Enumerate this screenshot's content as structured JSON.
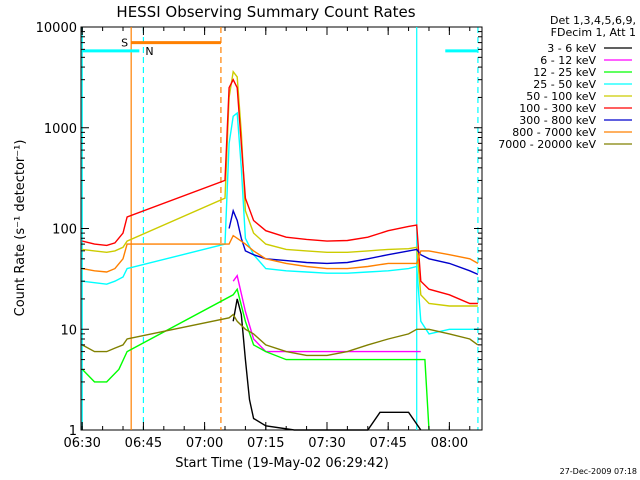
{
  "chart_data": {
    "type": "line",
    "title": "HESSI Observing Summary Count Rates",
    "xlabel": "Start Time (19-May-02 06:29:42)",
    "ylabel": "Count Rate (s⁻¹ detector⁻¹)",
    "yscale": "log",
    "ylim": [
      1,
      10000
    ],
    "xlim": [
      "06:29:42",
      "08:08:00"
    ],
    "x_ticks": [
      "06:30",
      "06:45",
      "07:00",
      "07:15",
      "07:30",
      "07:45",
      "08:00"
    ],
    "y_ticks": [
      "1",
      "10",
      "100",
      "1000",
      "10000"
    ],
    "legend_header": [
      "Det 1,3,4,5,6,9,",
      "FDecim 1, Att 1"
    ],
    "legend_position": "outside right",
    "timestamp": "27-Dec-2009 07:18",
    "flags": [
      {
        "label": "S",
        "color": "#ff8000",
        "level": 7000,
        "start": "06:42",
        "end": "07:04"
      },
      {
        "label": "N",
        "color": "#00ffff",
        "level": 5800,
        "start": "06:30",
        "end": "06:44"
      },
      {
        "label": "",
        "color": "#00ffff",
        "level": 5800,
        "start": "07:59",
        "end": "08:07"
      }
    ],
    "markers": [
      {
        "time": "06:30",
        "color": "#00ffff",
        "style": "solid"
      },
      {
        "time": "06:42",
        "color": "#ff8000",
        "style": "solid"
      },
      {
        "time": "06:45",
        "color": "#00ffff",
        "style": "dashed"
      },
      {
        "time": "07:04",
        "color": "#ff8000",
        "style": "dashed"
      },
      {
        "time": "07:52",
        "color": "#00ffff",
        "style": "solid"
      },
      {
        "time": "08:07",
        "color": "#00ffff",
        "style": "dashed"
      }
    ],
    "series": [
      {
        "name": "3 - 6 keV",
        "color": "#000000",
        "points": [
          [
            "07:07",
            12
          ],
          [
            "07:08",
            20
          ],
          [
            "07:09",
            14
          ],
          [
            "07:10",
            5
          ],
          [
            "07:11",
            2
          ],
          [
            "07:12",
            1.3
          ],
          [
            "07:15",
            1.1
          ],
          [
            "07:22",
            1
          ],
          [
            "07:40",
            1
          ],
          [
            "07:43",
            1.5
          ],
          [
            "07:46",
            1.5
          ],
          [
            "07:50",
            1.5
          ],
          [
            "07:53",
            1
          ]
        ]
      },
      {
        "name": "6 - 12 keV",
        "color": "#ff00ff",
        "points": [
          [
            "07:07",
            30
          ],
          [
            "07:08",
            34
          ],
          [
            "07:10",
            15
          ],
          [
            "07:12",
            8
          ],
          [
            "07:15",
            6
          ],
          [
            "07:20",
            6
          ],
          [
            "07:30",
            6
          ],
          [
            "07:40",
            6
          ],
          [
            "07:45",
            6
          ],
          [
            "07:50",
            6
          ],
          [
            "07:53",
            6
          ]
        ]
      },
      {
        "name": "12 - 25 keV",
        "color": "#00ff00",
        "points": [
          [
            "06:30",
            4
          ],
          [
            "06:33",
            3
          ],
          [
            "06:36",
            3
          ],
          [
            "06:39",
            4
          ],
          [
            "06:41",
            6
          ],
          [
            "07:07",
            22
          ],
          [
            "07:08",
            25
          ],
          [
            "07:10",
            12
          ],
          [
            "07:12",
            7
          ],
          [
            "07:15",
            6
          ],
          [
            "07:20",
            5
          ],
          [
            "07:30",
            5
          ],
          [
            "07:40",
            5
          ],
          [
            "07:45",
            5
          ],
          [
            "07:50",
            5
          ],
          [
            "07:54",
            5
          ],
          [
            "07:55",
            1
          ]
        ]
      },
      {
        "name": "25 - 50 keV",
        "color": "#00ffff",
        "points": [
          [
            "06:30",
            30
          ],
          [
            "06:33",
            29
          ],
          [
            "06:36",
            28
          ],
          [
            "06:38",
            30
          ],
          [
            "06:40",
            33
          ],
          [
            "06:41",
            40
          ],
          [
            "07:05",
            70
          ],
          [
            "07:06",
            700
          ],
          [
            "07:07",
            1300
          ],
          [
            "07:08",
            1400
          ],
          [
            "07:09",
            400
          ],
          [
            "07:10",
            80
          ],
          [
            "07:12",
            55
          ],
          [
            "07:15",
            40
          ],
          [
            "07:20",
            38
          ],
          [
            "07:25",
            37
          ],
          [
            "07:30",
            36
          ],
          [
            "07:35",
            36
          ],
          [
            "07:40",
            37
          ],
          [
            "07:45",
            38
          ],
          [
            "07:50",
            40
          ],
          [
            "07:52",
            42
          ],
          [
            "07:53",
            12
          ],
          [
            "07:55",
            9
          ],
          [
            "08:00",
            10
          ],
          [
            "08:05",
            10
          ],
          [
            "08:07",
            10
          ]
        ]
      },
      {
        "name": "50 - 100 keV",
        "color": "#cccc00",
        "points": [
          [
            "06:30",
            62
          ],
          [
            "06:33",
            60
          ],
          [
            "06:36",
            58
          ],
          [
            "06:38",
            60
          ],
          [
            "06:40",
            65
          ],
          [
            "06:41",
            75
          ],
          [
            "07:05",
            200
          ],
          [
            "07:06",
            2000
          ],
          [
            "07:07",
            3600
          ],
          [
            "07:08",
            3200
          ],
          [
            "07:09",
            900
          ],
          [
            "07:10",
            150
          ],
          [
            "07:12",
            90
          ],
          [
            "07:15",
            70
          ],
          [
            "07:20",
            62
          ],
          [
            "07:25",
            60
          ],
          [
            "07:30",
            58
          ],
          [
            "07:35",
            58
          ],
          [
            "07:40",
            60
          ],
          [
            "07:45",
            62
          ],
          [
            "07:50",
            63
          ],
          [
            "07:52",
            65
          ],
          [
            "07:53",
            22
          ],
          [
            "07:55",
            18
          ],
          [
            "08:00",
            17
          ],
          [
            "08:05",
            17
          ],
          [
            "08:07",
            17
          ]
        ]
      },
      {
        "name": "100 - 300 keV",
        "color": "#ff0000",
        "points": [
          [
            "06:30",
            75
          ],
          [
            "06:33",
            70
          ],
          [
            "06:36",
            68
          ],
          [
            "06:38",
            72
          ],
          [
            "06:40",
            90
          ],
          [
            "06:41",
            130
          ],
          [
            "07:05",
            300
          ],
          [
            "07:06",
            2500
          ],
          [
            "07:07",
            3000
          ],
          [
            "07:08",
            2500
          ],
          [
            "07:09",
            700
          ],
          [
            "07:10",
            200
          ],
          [
            "07:12",
            120
          ],
          [
            "07:15",
            95
          ],
          [
            "07:20",
            82
          ],
          [
            "07:25",
            78
          ],
          [
            "07:30",
            75
          ],
          [
            "07:35",
            76
          ],
          [
            "07:40",
            82
          ],
          [
            "07:45",
            95
          ],
          [
            "07:50",
            105
          ],
          [
            "07:52",
            108
          ],
          [
            "07:53",
            30
          ],
          [
            "07:55",
            25
          ],
          [
            "08:00",
            22
          ],
          [
            "08:05",
            18
          ],
          [
            "08:07",
            18
          ]
        ]
      },
      {
        "name": "300 - 800 keV",
        "color": "#0000cc",
        "points": [
          [
            "07:06",
            100
          ],
          [
            "07:07",
            150
          ],
          [
            "07:08",
            120
          ],
          [
            "07:09",
            80
          ],
          [
            "07:10",
            60
          ],
          [
            "07:12",
            55
          ],
          [
            "07:15",
            50
          ],
          [
            "07:20",
            48
          ],
          [
            "07:25",
            46
          ],
          [
            "07:30",
            45
          ],
          [
            "07:35",
            46
          ],
          [
            "07:40",
            50
          ],
          [
            "07:45",
            55
          ],
          [
            "07:50",
            60
          ],
          [
            "07:52",
            62
          ],
          [
            "07:53",
            55
          ],
          [
            "07:55",
            50
          ],
          [
            "08:00",
            45
          ],
          [
            "08:05",
            38
          ],
          [
            "08:07",
            35
          ]
        ]
      },
      {
        "name": "800 - 7000 keV",
        "color": "#ff8000",
        "points": [
          [
            "06:30",
            40
          ],
          [
            "06:33",
            38
          ],
          [
            "06:36",
            37
          ],
          [
            "06:38",
            40
          ],
          [
            "06:40",
            50
          ],
          [
            "06:41",
            70
          ],
          [
            "07:06",
            70
          ],
          [
            "07:07",
            85
          ],
          [
            "07:08",
            80
          ],
          [
            "07:10",
            70
          ],
          [
            "07:12",
            60
          ],
          [
            "07:15",
            50
          ],
          [
            "07:20",
            45
          ],
          [
            "07:25",
            42
          ],
          [
            "07:30",
            40
          ],
          [
            "07:35",
            40
          ],
          [
            "07:40",
            42
          ],
          [
            "07:45",
            45
          ],
          [
            "07:50",
            45
          ],
          [
            "07:52",
            45
          ],
          [
            "07:53",
            60
          ],
          [
            "07:55",
            60
          ],
          [
            "08:00",
            55
          ],
          [
            "08:05",
            50
          ],
          [
            "08:07",
            45
          ]
        ]
      },
      {
        "name": "7000 - 20000 keV",
        "color": "#808000",
        "points": [
          [
            "06:30",
            7
          ],
          [
            "06:33",
            6
          ],
          [
            "06:36",
            6
          ],
          [
            "06:38",
            6.5
          ],
          [
            "06:40",
            7
          ],
          [
            "06:41",
            8
          ],
          [
            "07:06",
            13
          ],
          [
            "07:07",
            14
          ],
          [
            "07:08",
            12
          ],
          [
            "07:10",
            10
          ],
          [
            "07:12",
            9
          ],
          [
            "07:15",
            7
          ],
          [
            "07:20",
            6
          ],
          [
            "07:25",
            5.5
          ],
          [
            "07:30",
            5.5
          ],
          [
            "07:35",
            6
          ],
          [
            "07:40",
            7
          ],
          [
            "07:45",
            8
          ],
          [
            "07:50",
            9
          ],
          [
            "07:52",
            10
          ],
          [
            "07:55",
            10
          ],
          [
            "08:00",
            9
          ],
          [
            "08:05",
            8
          ],
          [
            "08:07",
            7
          ]
        ]
      }
    ]
  }
}
